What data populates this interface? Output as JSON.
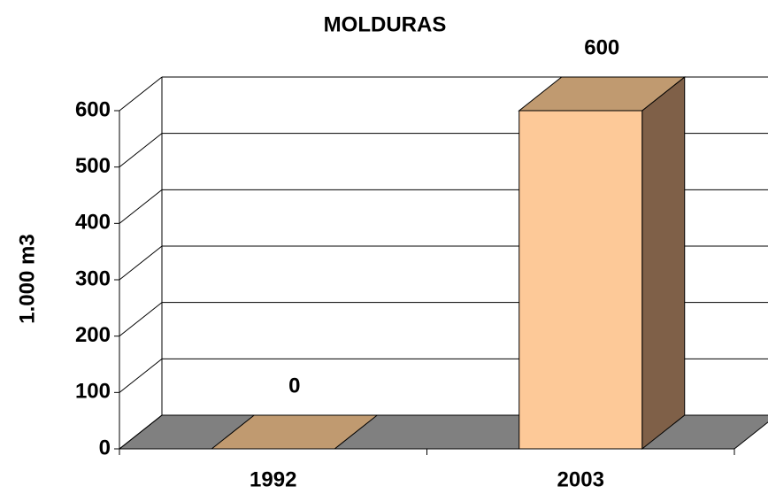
{
  "chart_data": {
    "type": "bar3d",
    "title": "MOLDURAS",
    "y_label": "1.000 m3",
    "categories": [
      "1992",
      "2003"
    ],
    "values": [
      0,
      600
    ],
    "color": "#fdc998",
    "ylim": [
      0,
      600
    ],
    "yticks": [
      0,
      100,
      200,
      300,
      400,
      500,
      600
    ],
    "grid": true
  }
}
